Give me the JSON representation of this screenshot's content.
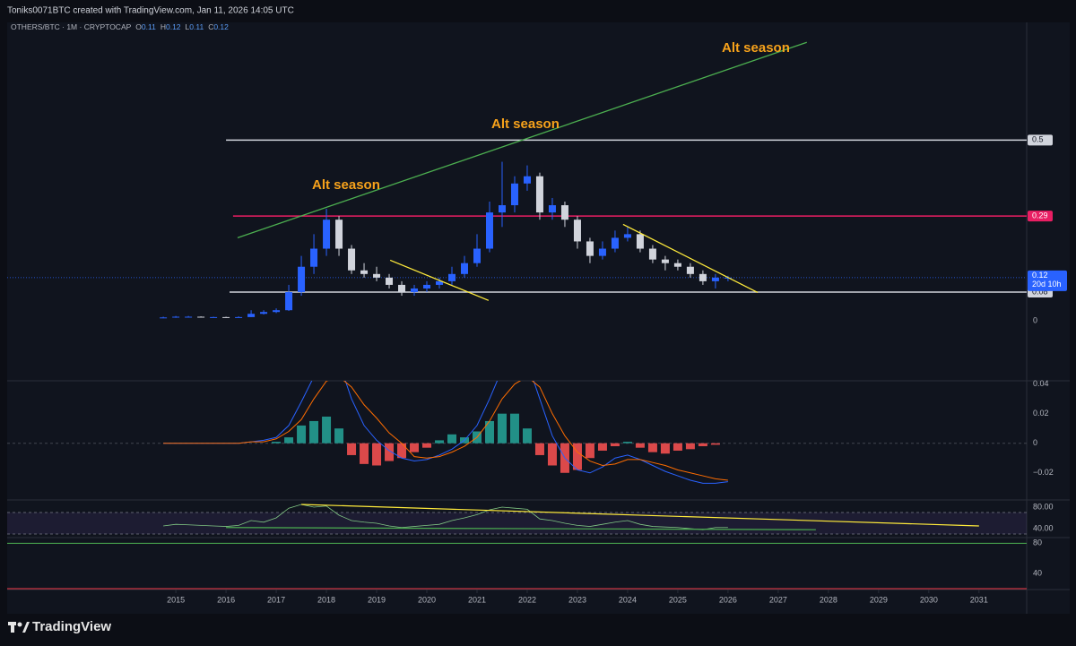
{
  "header": "Toniks0071BTC created with TradingView.com, Jan 11, 2026 14:05 UTC",
  "footer": "TradingView",
  "chart_data": {
    "type": "candlestick",
    "legend": {
      "symbol": "OTHERS/BTC · 1M · CRYPTOCAP",
      "labels": [
        "O",
        "H",
        "L",
        "C"
      ],
      "values": [
        0.11,
        0.12,
        0.11,
        0.12
      ]
    },
    "countdown": "20d 10h",
    "x": [
      2014.75,
      2015,
      2015.25,
      2015.5,
      2015.75,
      2016,
      2016.25,
      2016.5,
      2016.75,
      2017,
      2017.25,
      2017.5,
      2017.75,
      2018,
      2018.25,
      2018.5,
      2018.75,
      2019,
      2019.25,
      2019.5,
      2019.75,
      2020,
      2020.25,
      2020.5,
      2020.75,
      2021,
      2021.25,
      2021.5,
      2021.75,
      2022,
      2022.25,
      2022.5,
      2022.75,
      2023,
      2023.25,
      2023.5,
      2023.75,
      2024,
      2024.25,
      2024.5,
      2024.75,
      2025,
      2025.25,
      2025.5,
      2025.75,
      2026
    ],
    "open": [
      0.009,
      0.01,
      0.012,
      0.012,
      0.011,
      0.011,
      0.01,
      0.011,
      0.02,
      0.025,
      0.03,
      0.08,
      0.15,
      0.2,
      0.28,
      0.2,
      0.14,
      0.13,
      0.12,
      0.1,
      0.08,
      0.09,
      0.1,
      0.11,
      0.13,
      0.16,
      0.2,
      0.3,
      0.32,
      0.38,
      0.4,
      0.3,
      0.32,
      0.28,
      0.22,
      0.18,
      0.2,
      0.23,
      0.24,
      0.2,
      0.17,
      0.16,
      0.15,
      0.13,
      0.11,
      0.12
    ],
    "high": [
      0.012,
      0.014,
      0.014,
      0.013,
      0.012,
      0.012,
      0.013,
      0.03,
      0.03,
      0.035,
      0.1,
      0.18,
      0.24,
      0.31,
      0.29,
      0.21,
      0.16,
      0.15,
      0.13,
      0.11,
      0.1,
      0.11,
      0.12,
      0.15,
      0.18,
      0.24,
      0.33,
      0.44,
      0.4,
      0.43,
      0.41,
      0.34,
      0.33,
      0.29,
      0.23,
      0.22,
      0.25,
      0.26,
      0.25,
      0.21,
      0.18,
      0.17,
      0.16,
      0.14,
      0.13,
      0.125
    ],
    "low": [
      0.008,
      0.009,
      0.011,
      0.01,
      0.01,
      0.009,
      0.01,
      0.011,
      0.018,
      0.022,
      0.028,
      0.07,
      0.13,
      0.18,
      0.18,
      0.13,
      0.12,
      0.11,
      0.09,
      0.07,
      0.07,
      0.08,
      0.09,
      0.1,
      0.12,
      0.15,
      0.19,
      0.26,
      0.3,
      0.36,
      0.28,
      0.28,
      0.26,
      0.2,
      0.16,
      0.17,
      0.19,
      0.22,
      0.19,
      0.16,
      0.14,
      0.14,
      0.12,
      0.1,
      0.09,
      0.11
    ],
    "close": [
      0.01,
      0.012,
      0.012,
      0.011,
      0.011,
      0.01,
      0.011,
      0.02,
      0.025,
      0.03,
      0.08,
      0.15,
      0.2,
      0.28,
      0.2,
      0.14,
      0.13,
      0.12,
      0.1,
      0.08,
      0.09,
      0.1,
      0.11,
      0.13,
      0.16,
      0.2,
      0.3,
      0.32,
      0.38,
      0.4,
      0.3,
      0.32,
      0.28,
      0.22,
      0.18,
      0.2,
      0.23,
      0.24,
      0.2,
      0.17,
      0.16,
      0.15,
      0.13,
      0.11,
      0.12,
      0.12
    ],
    "up_color": "#2962ff",
    "down_color": "#d1d4dc",
    "xlim": [
      2011.64,
      2031.95
    ],
    "xticks": [
      2015,
      2016,
      2017,
      2018,
      2019,
      2020,
      2021,
      2022,
      2023,
      2024,
      2025,
      2026,
      2027,
      2028,
      2029,
      2030,
      2031
    ],
    "ylim": [
      -0.165,
      0.825
    ],
    "yticks": [
      0
    ],
    "levels": [
      {
        "value": 0.5,
        "start": 2016.0,
        "color": "#d1d4dc"
      },
      {
        "value": 0.29,
        "start": 2016.14,
        "color": "#e91e63"
      },
      {
        "value": 0.08,
        "start": 2016.07,
        "color": "#d1d4dc"
      }
    ],
    "trendlines": [
      {
        "x": [
          2016.23,
          2027.57
        ],
        "y": [
          0.23,
          0.77
        ],
        "color": "#4caf50"
      },
      {
        "x": [
          2019.27,
          2021.23
        ],
        "y": [
          0.168,
          0.057
        ],
        "color": "#ffeb3b"
      },
      {
        "x": [
          2023.91,
          2026.59
        ],
        "y": [
          0.267,
          0.079
        ],
        "color": "#ffeb3b"
      }
    ],
    "annotations": [
      "Alt season",
      "Alt season",
      "Alt season"
    ],
    "annotation_color": "#f7a21b",
    "macd": {
      "ylim": [
        -0.0383,
        0.0422
      ],
      "yticks": [
        0.04,
        0.02,
        0,
        {
          "value": -0.02,
          "label": "−0.02"
        }
      ],
      "histogram": [
        0,
        0,
        0,
        0,
        0,
        0,
        0,
        0,
        0,
        0.001,
        0.004,
        0.012,
        0.015,
        0.018,
        0.01,
        -0.008,
        -0.014,
        -0.015,
        -0.012,
        -0.01,
        -0.006,
        -0.003,
        0.002,
        0.006,
        0.004,
        0.008,
        0.015,
        0.02,
        0.02,
        0.01,
        -0.008,
        -0.015,
        -0.02,
        -0.018,
        -0.01,
        -0.005,
        -0.002,
        0.001,
        -0.003,
        -0.006,
        -0.007,
        -0.005,
        -0.004,
        -0.002,
        -0.001,
        0
      ],
      "macd": [
        0,
        0,
        0,
        0,
        0,
        0,
        0,
        0.001,
        0.002,
        0.004,
        0.012,
        0.028,
        0.045,
        0.06,
        0.055,
        0.03,
        0.012,
        0.002,
        -0.005,
        -0.01,
        -0.012,
        -0.011,
        -0.008,
        -0.004,
        0.002,
        0.012,
        0.03,
        0.05,
        0.06,
        0.055,
        0.03,
        0.005,
        -0.01,
        -0.018,
        -0.02,
        -0.016,
        -0.01,
        -0.008,
        -0.011,
        -0.015,
        -0.019,
        -0.022,
        -0.025,
        -0.027,
        -0.027,
        -0.026
      ],
      "signal": [
        0,
        0,
        0,
        0,
        0,
        0,
        0,
        0.001,
        0.001,
        0.003,
        0.008,
        0.016,
        0.03,
        0.042,
        0.045,
        0.038,
        0.026,
        0.017,
        0.007,
        0,
        -0.009,
        -0.01,
        -0.009,
        -0.006,
        -0.002,
        0.004,
        0.015,
        0.03,
        0.04,
        0.045,
        0.038,
        0.02,
        0.005,
        -0.006,
        -0.012,
        -0.015,
        -0.014,
        -0.011,
        -0.011,
        -0.013,
        -0.015,
        -0.018,
        -0.02,
        -0.022,
        -0.024,
        -0.025
      ],
      "pos_color": "#26a69a",
      "neg_color": "#ff5252",
      "macd_color": "#2962ff",
      "signal_color": "#ff6d00"
    },
    "rsi": {
      "ylim": [
        23.3,
        93.3
      ],
      "yticks": [
        {
          "value": 80,
          "label": "80.00"
        },
        {
          "value": 40,
          "label": "40.00"
        }
      ],
      "band": [
        30,
        70
      ],
      "values": [
        45,
        48,
        47,
        46,
        45,
        44,
        46,
        55,
        52,
        60,
        78,
        85,
        80,
        82,
        65,
        55,
        52,
        50,
        45,
        42,
        44,
        46,
        48,
        55,
        60,
        66,
        75,
        80,
        78,
        76,
        58,
        55,
        50,
        46,
        44,
        48,
        52,
        55,
        48,
        44,
        43,
        42,
        40,
        38,
        42,
        42
      ],
      "color": "#81c784",
      "trendlines": [
        {
          "x": [
            2017.5,
            2031.0
          ],
          "y": [
            85,
            45
          ],
          "color": "#ffeb3b"
        },
        {
          "x": [
            2016.0,
            2027.75
          ],
          "y": [
            42,
            38
          ],
          "color": "#4caf50"
        }
      ]
    },
    "osc": {
      "ylim": [
        18.75,
        87.5
      ],
      "yticks": [
        80,
        40
      ],
      "levels": [
        {
          "value": 80,
          "color": "#4caf50"
        },
        {
          "value": 20,
          "color": "#f23645"
        }
      ]
    }
  }
}
